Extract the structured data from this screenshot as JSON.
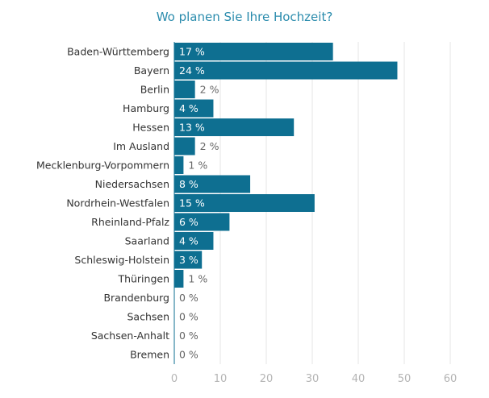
{
  "chart_data": {
    "type": "bar",
    "orientation": "horizontal",
    "title": "Wo planen Sie Ihre Hochzeit?",
    "xlabel": "",
    "ylabel": "",
    "categories": [
      "Baden-Württemberg",
      "Bayern",
      "Berlin",
      "Hamburg",
      "Hessen",
      "Im Ausland",
      "Mecklenburg-Vorpommern",
      "Niedersachsen",
      "Nordrhein-Westfalen",
      "Rheinland-Pfalz",
      "Saarland",
      "Schleswig-Holstein",
      "Thüringen",
      "Brandenburg",
      "Sachsen",
      "Sachsen-Anhalt",
      "Bremen"
    ],
    "values": [
      34.5,
      48.5,
      4.5,
      8.5,
      26.0,
      4.5,
      2.0,
      16.5,
      30.5,
      12.0,
      8.5,
      6.0,
      2.0,
      0,
      0,
      0,
      0
    ],
    "value_labels": [
      "17 %",
      "24 %",
      "2 %",
      "4 %",
      "13 %",
      "2 %",
      "1 %",
      "8 %",
      "15 %",
      "6 %",
      "4 %",
      "3 %",
      "1 %",
      "0 %",
      "0 %",
      "0 %",
      "0 %"
    ],
    "xticks": [
      0,
      10,
      20,
      30,
      40,
      50,
      60
    ],
    "xlim": [
      0,
      60
    ],
    "grid": true,
    "colors": {
      "bar": "#0e6f91",
      "title": "#2b8cad",
      "label": "#333333",
      "tick": "#b5b5b5",
      "grid": "#e6e6e6",
      "value_inside": "#ffffff",
      "value_outside": "#666666"
    }
  }
}
